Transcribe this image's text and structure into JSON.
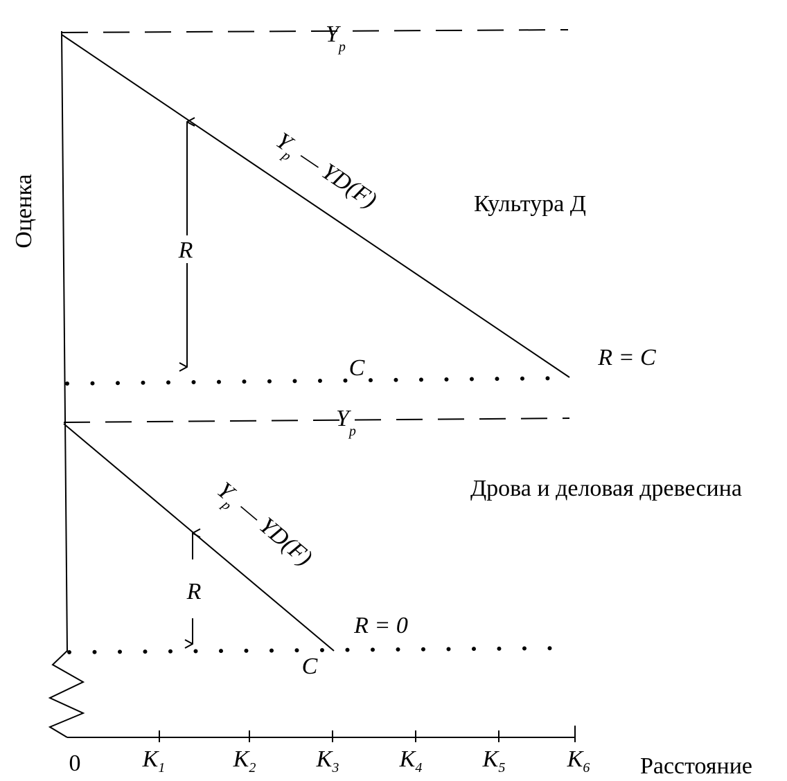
{
  "axes": {
    "y_label": "Оценка",
    "x_label": "Расстояние",
    "x_ticks": [
      {
        "main": "0"
      },
      {
        "main": "K",
        "sub": "1"
      },
      {
        "main": "K",
        "sub": "2"
      },
      {
        "main": "K",
        "sub": "3"
      },
      {
        "main": "K",
        "sub": "4"
      },
      {
        "main": "K",
        "sub": "5"
      },
      {
        "main": "K",
        "sub": "6"
      }
    ]
  },
  "panels": [
    {
      "title": "Культура Д",
      "price": {
        "main": "Y",
        "sub": "p"
      },
      "curve": {
        "main": "Y",
        "sub": "p",
        "rest": "— YD(F)"
      },
      "rent": "R",
      "cost": "C",
      "end": "R = C"
    },
    {
      "title": "Дрова и деловая древесина",
      "price": {
        "main": "Y",
        "sub": "p"
      },
      "curve": {
        "main": "Y",
        "sub": "p",
        "rest": "— YD(F)"
      },
      "rent": "R",
      "cost": "C",
      "end": "R = 0"
    }
  ]
}
